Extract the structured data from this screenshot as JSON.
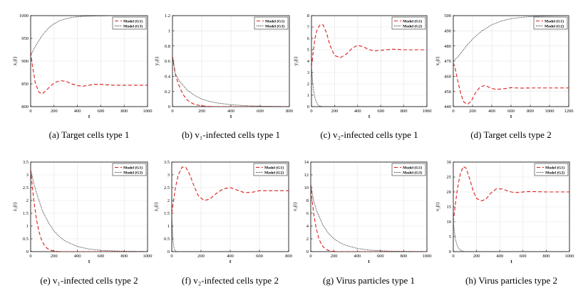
{
  "chart_data": [
    {
      "id": "a",
      "type": "line",
      "caption": "(a)  Target cells type 1",
      "xlabel": "t",
      "ylabel": "x₁(t)",
      "xlim": [
        0,
        1000
      ],
      "ylim": [
        800,
        1000
      ],
      "xticks": [
        0,
        200,
        400,
        600,
        800,
        1000
      ],
      "yticks": [
        800,
        850,
        900,
        950,
        1000
      ],
      "legend": [
        "Model (G1)",
        "Model (G3)"
      ],
      "series": [
        {
          "name": "Model (G1)",
          "style": "dashed",
          "color": "#dd1c1c",
          "x": [
            0,
            15,
            40,
            70,
            100,
            150,
            200,
            250,
            300,
            350,
            400,
            450,
            500,
            550,
            600,
            650,
            700,
            800,
            900,
            1000
          ],
          "y": [
            920,
            890,
            852,
            832,
            828,
            840,
            852,
            857,
            856,
            850,
            846,
            845,
            847,
            849,
            849,
            848,
            847,
            847,
            847,
            847
          ]
        },
        {
          "name": "Model (G3)",
          "style": "dotted",
          "color": "#222222",
          "x": [
            0,
            25,
            50,
            100,
            150,
            200,
            250,
            300,
            350,
            400,
            450,
            500,
            600,
            700,
            800,
            900,
            1000
          ],
          "y": [
            913,
            925,
            937,
            957,
            972,
            982,
            989,
            993,
            996,
            997.5,
            998.5,
            999,
            999.5,
            1000,
            1000,
            1000,
            1000
          ]
        }
      ]
    },
    {
      "id": "b",
      "type": "line",
      "caption": "(b)  v₁-infected cells type 1",
      "xlabel": "t",
      "ylabel": "y₁(t)",
      "xlim": [
        0,
        800
      ],
      "ylim": [
        0,
        1.2
      ],
      "xticks": [
        0,
        200,
        400,
        600,
        800
      ],
      "yticks": [
        0,
        0.2,
        0.4,
        0.6,
        0.8,
        1,
        1.2
      ],
      "legend": [
        "Model (G1)",
        "Model (G3)"
      ],
      "series": [
        {
          "name": "Model (G1)",
          "style": "dashed",
          "color": "#dd1c1c",
          "x": [
            0,
            20,
            40,
            60,
            80,
            100,
            120,
            150,
            200,
            250,
            300,
            800
          ],
          "y": [
            0.66,
            0.42,
            0.3,
            0.21,
            0.14,
            0.09,
            0.06,
            0.03,
            0.01,
            0.003,
            0.0,
            0.0
          ]
        },
        {
          "name": "Model (G3)",
          "style": "dotted",
          "color": "#222222",
          "x": [
            0,
            20,
            50,
            100,
            150,
            200,
            250,
            300,
            400,
            500,
            600,
            700,
            800
          ],
          "y": [
            0.66,
            0.43,
            0.33,
            0.22,
            0.15,
            0.1,
            0.07,
            0.05,
            0.025,
            0.012,
            0.006,
            0.003,
            0.001
          ]
        }
      ]
    },
    {
      "id": "c",
      "type": "line",
      "caption": "(c)  v₂-infected cells type 1",
      "xlabel": "t",
      "ylabel": "y₂(t)",
      "xlim": [
        0,
        1000
      ],
      "ylim": [
        0,
        8
      ],
      "xticks": [
        0,
        200,
        400,
        600,
        800,
        1000
      ],
      "yticks": [
        0,
        1,
        2,
        3,
        4,
        5,
        6,
        7,
        8
      ],
      "legend": [
        "Model (G1)",
        "Model (G2)"
      ],
      "series": [
        {
          "name": "Model (G1)",
          "style": "dashed",
          "color": "#dd1c1c",
          "x": [
            0,
            15,
            30,
            50,
            75,
            100,
            130,
            160,
            200,
            250,
            300,
            350,
            400,
            450,
            500,
            550,
            600,
            700,
            800,
            900,
            1000
          ],
          "y": [
            3.5,
            4.8,
            6.0,
            6.8,
            7.2,
            7.2,
            6.5,
            5.4,
            4.5,
            4.3,
            4.6,
            5.1,
            5.4,
            5.25,
            5.0,
            4.9,
            4.95,
            5.05,
            5.0,
            5.0,
            5.0
          ]
        },
        {
          "name": "Model (G2)",
          "style": "dotted",
          "color": "#222222",
          "x": [
            0,
            5,
            10,
            20,
            30,
            40,
            50,
            60,
            80,
            100,
            1000
          ],
          "y": [
            3.5,
            2.8,
            2.2,
            1.3,
            0.8,
            0.45,
            0.25,
            0.12,
            0.03,
            0.0,
            0.0
          ]
        }
      ]
    },
    {
      "id": "d",
      "type": "line",
      "caption": "(d)  Target cells type 2",
      "xlabel": "t",
      "ylabel": "x₂(t)",
      "xlim": [
        0,
        1200
      ],
      "ylim": [
        440,
        500
      ],
      "xticks": [
        0,
        200,
        400,
        600,
        800,
        1000,
        1200
      ],
      "yticks": [
        440,
        450,
        460,
        470,
        480,
        490,
        500
      ],
      "legend": [
        "Model (G1)",
        "Model (G2)"
      ],
      "series": [
        {
          "name": "Model (G1)",
          "style": "dashed",
          "color": "#dd1c1c",
          "x": [
            0,
            20,
            50,
            80,
            110,
            150,
            190,
            230,
            280,
            330,
            380,
            430,
            480,
            550,
            600,
            650,
            700,
            800,
            900,
            1000,
            1200
          ],
          "y": [
            469,
            465,
            456,
            448,
            443,
            441.5,
            444,
            449,
            453,
            454,
            452.5,
            451.5,
            451.5,
            452,
            452.5,
            452.3,
            452.2,
            452.3,
            452.3,
            452.3,
            452.3
          ]
        },
        {
          "name": "Model (G2)",
          "style": "dotted",
          "color": "#222222",
          "x": [
            0,
            50,
            100,
            150,
            200,
            250,
            300,
            350,
            400,
            500,
            600,
            700,
            800,
            900,
            1000,
            1100,
            1200
          ],
          "y": [
            470,
            473,
            477,
            481,
            484.5,
            487.5,
            490,
            492,
            494,
            496.5,
            498,
            498.8,
            499.3,
            499.6,
            499.8,
            499.9,
            500
          ]
        }
      ]
    },
    {
      "id": "e",
      "type": "line",
      "caption": "(e)  v₁-infected cells type 2",
      "xlabel": "t",
      "ylabel": "z₁(t)",
      "xlim": [
        0,
        1000
      ],
      "ylim": [
        0,
        3.5
      ],
      "xticks": [
        0,
        200,
        400,
        600,
        800,
        1000
      ],
      "yticks": [
        0,
        0.5,
        1,
        1.5,
        2,
        2.5,
        3,
        3.5
      ],
      "legend": [
        "Model (G1)",
        "Model (G3)"
      ],
      "series": [
        {
          "name": "Model (G1)",
          "style": "dashed",
          "color": "#dd1c1c",
          "x": [
            0,
            15,
            30,
            50,
            70,
            90,
            110,
            130,
            160,
            200,
            250,
            1000
          ],
          "y": [
            3.2,
            2.5,
            1.9,
            1.25,
            0.8,
            0.5,
            0.3,
            0.17,
            0.07,
            0.02,
            0.0,
            0.0
          ]
        },
        {
          "name": "Model (G3)",
          "style": "dotted",
          "color": "#222222",
          "x": [
            0,
            25,
            50,
            100,
            150,
            200,
            250,
            300,
            400,
            500,
            600,
            700,
            800,
            1000
          ],
          "y": [
            3.2,
            2.7,
            2.3,
            1.6,
            1.15,
            0.8,
            0.57,
            0.4,
            0.2,
            0.1,
            0.05,
            0.03,
            0.015,
            0.005
          ]
        }
      ]
    },
    {
      "id": "f",
      "type": "line",
      "caption": "(f)  v₂-infected cells type 2",
      "xlabel": "t",
      "ylabel": "z₂(t)",
      "xlim": [
        0,
        800
      ],
      "ylim": [
        0,
        3.5
      ],
      "xticks": [
        0,
        200,
        400,
        600,
        800
      ],
      "yticks": [
        0,
        0.5,
        1,
        1.5,
        2,
        2.5,
        3,
        3.5
      ],
      "legend": [
        "Model (G1)",
        "Model (G2)"
      ],
      "series": [
        {
          "name": "Model (G1)",
          "style": "dashed",
          "color": "#dd1c1c",
          "x": [
            0,
            10,
            25,
            45,
            70,
            95,
            120,
            150,
            180,
            220,
            260,
            300,
            350,
            400,
            450,
            500,
            550,
            600,
            700,
            800
          ],
          "y": [
            1.5,
            1.9,
            2.5,
            3.0,
            3.3,
            3.3,
            3.05,
            2.6,
            2.2,
            2.0,
            2.05,
            2.25,
            2.45,
            2.5,
            2.4,
            2.3,
            2.32,
            2.38,
            2.38,
            2.38
          ]
        },
        {
          "name": "Model (G2)",
          "style": "dotted",
          "color": "#222222",
          "x": [
            0,
            3,
            6,
            10,
            15,
            20,
            30,
            40,
            800
          ],
          "y": [
            1.5,
            1.0,
            0.65,
            0.35,
            0.15,
            0.06,
            0.01,
            0.0,
            0.0
          ]
        }
      ]
    },
    {
      "id": "g",
      "type": "line",
      "caption": "(g)  Virus particles type 1",
      "xlabel": "t",
      "ylabel": "v₁(t)",
      "xlim": [
        0,
        1000
      ],
      "ylim": [
        0,
        14
      ],
      "xticks": [
        0,
        200,
        400,
        600,
        800,
        1000
      ],
      "yticks": [
        0,
        2,
        4,
        6,
        8,
        10,
        12,
        14
      ],
      "legend": [
        "Model (G1)",
        "Model (G3)"
      ],
      "series": [
        {
          "name": "Model (G1)",
          "style": "dashed",
          "color": "#dd1c1c",
          "x": [
            0,
            10,
            25,
            45,
            70,
            95,
            120,
            150,
            180,
            220,
            1000
          ],
          "y": [
            10.5,
            8.3,
            6.0,
            3.8,
            2.0,
            1.0,
            0.5,
            0.2,
            0.07,
            0.0,
            0.0
          ]
        },
        {
          "name": "Model (G3)",
          "style": "dotted",
          "color": "#222222",
          "x": [
            0,
            25,
            50,
            100,
            150,
            200,
            250,
            300,
            400,
            500,
            600,
            700,
            800,
            1000
          ],
          "y": [
            10.5,
            8.0,
            6.4,
            4.3,
            2.9,
            2.0,
            1.4,
            1.0,
            0.5,
            0.25,
            0.13,
            0.07,
            0.04,
            0.01
          ]
        }
      ]
    },
    {
      "id": "h",
      "type": "line",
      "caption": "(h)  Virus particles type 2",
      "xlabel": "t",
      "ylabel": "v₂(t)",
      "xlim": [
        0,
        1000
      ],
      "ylim": [
        0,
        30
      ],
      "xticks": [
        0,
        200,
        400,
        600,
        800,
        1000
      ],
      "yticks": [
        0,
        5,
        10,
        15,
        20,
        25,
        30
      ],
      "legend": [
        "Model (G1)",
        "Model (G2)"
      ],
      "series": [
        {
          "name": "Model (G1)",
          "style": "dashed",
          "color": "#dd1c1c",
          "x": [
            0,
            15,
            35,
            60,
            85,
            110,
            140,
            170,
            200,
            240,
            280,
            320,
            370,
            420,
            470,
            520,
            570,
            620,
            700,
            800,
            900,
            1000
          ],
          "y": [
            10,
            15,
            21,
            26,
            28.5,
            28,
            24.5,
            20.5,
            17.8,
            17.0,
            17.5,
            19.5,
            21.0,
            21.0,
            20.3,
            19.8,
            19.8,
            20.1,
            20.1,
            20.0,
            20.0,
            20.0
          ]
        },
        {
          "name": "Model (G2)",
          "style": "dotted",
          "color": "#222222",
          "x": [
            0,
            10,
            20,
            30,
            45,
            60,
            80,
            100,
            1000
          ],
          "y": [
            10,
            6.5,
            4.0,
            2.4,
            1.2,
            0.5,
            0.15,
            0.0,
            0.0
          ]
        }
      ]
    }
  ]
}
